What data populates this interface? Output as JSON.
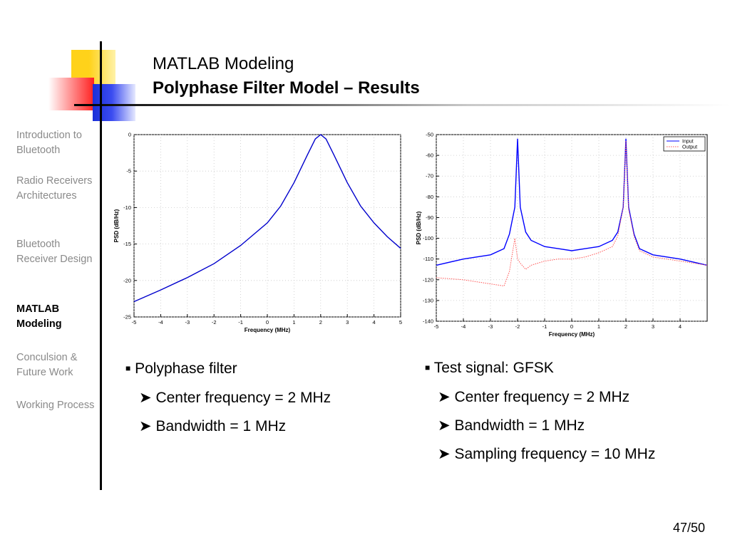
{
  "header": {
    "title": "MATLAB Modeling",
    "subtitle": "Polyphase Filter Model – Results"
  },
  "sidebar": {
    "items": [
      {
        "label": "Introduction to Bluetooth",
        "active": false
      },
      {
        "label": "Radio Receivers Architectures",
        "active": false
      },
      {
        "label": "Bluetooth Receiver Design",
        "active": false
      },
      {
        "label": "MATLAB Modeling",
        "active": true
      },
      {
        "label": "Conculsion & Future Work",
        "active": false
      },
      {
        "label": "Working Process",
        "active": false
      }
    ]
  },
  "chart_data": [
    {
      "type": "line",
      "xlabel": "Frequency (MHz)",
      "ylabel": "PSD (dB/Hz)",
      "xlim": [
        -5,
        5
      ],
      "ylim": [
        -25,
        0
      ],
      "xticks": [
        -5,
        -4,
        -3,
        -2,
        -1,
        0,
        1,
        2,
        3,
        4,
        5
      ],
      "yticks": [
        0,
        -5,
        -10,
        -15,
        -20,
        -25
      ],
      "grid": true,
      "series": [
        {
          "color": "#0000cc",
          "x": [
            -5,
            -4,
            -3,
            -2,
            -1,
            0,
            0.5,
            1,
            1.5,
            1.8,
            2,
            2.2,
            2.5,
            3,
            3.5,
            4,
            4.5,
            5
          ],
          "y": [
            -22.9,
            -21.3,
            -19.6,
            -17.7,
            -15.2,
            -12.1,
            -9.8,
            -6.6,
            -2.8,
            -0.6,
            0,
            -0.6,
            -2.8,
            -6.6,
            -9.8,
            -12.1,
            -14,
            -15.6
          ]
        }
      ]
    },
    {
      "type": "line",
      "xlabel": "Frequency (MHz)",
      "ylabel": "PSD (dB/Hz)",
      "xlim": [
        -5,
        5
      ],
      "ylim": [
        -140,
        -50
      ],
      "xticks": [
        -5,
        -4,
        -3,
        -2,
        -1,
        0,
        1,
        2,
        3,
        4
      ],
      "yticks": [
        -50,
        -60,
        -70,
        -80,
        -90,
        -100,
        -110,
        -120,
        -130,
        -140
      ],
      "grid": true,
      "legend": "top-right",
      "series": [
        {
          "name": "Input",
          "color": "#0000ff",
          "x": [
            -5,
            -4,
            -3,
            -2.5,
            -2.3,
            -2.1,
            -2.0,
            -1.9,
            -1.7,
            -1.5,
            -1,
            -0.5,
            0,
            0.5,
            1,
            1.5,
            1.7,
            1.9,
            2.0,
            2.1,
            2.3,
            2.5,
            3,
            4,
            5
          ],
          "y": [
            -113,
            -110,
            -108,
            -105,
            -98,
            -85,
            -52,
            -85,
            -97,
            -101,
            -104,
            -105,
            -106,
            -105,
            -104,
            -101,
            -97,
            -85,
            -52,
            -85,
            -98,
            -105,
            -108,
            -110,
            -113
          ]
        },
        {
          "name": "Output",
          "color": "#ff5555",
          "x": [
            -5,
            -4,
            -3,
            -2.5,
            -2.3,
            -2.1,
            -2.0,
            -1.9,
            -1.7,
            -1.5,
            -1,
            -0.5,
            0,
            0.5,
            1,
            1.5,
            1.7,
            1.9,
            2.0,
            2.1,
            2.3,
            2.5,
            3,
            4,
            5
          ],
          "y": [
            -119,
            -120,
            -122,
            -123,
            -116,
            -100,
            -110,
            -112,
            -115,
            -113,
            -111,
            -110,
            -110,
            -109,
            -107,
            -104,
            -99,
            -85,
            -53,
            -86,
            -99,
            -106,
            -109,
            -111,
            -113
          ]
        }
      ]
    }
  ],
  "bullets_left": {
    "main": "Polyphase filter",
    "subs": [
      "Center frequency = 2 MHz",
      "Bandwidth = 1 MHz"
    ]
  },
  "bullets_right": {
    "main": "Test signal: GFSK",
    "subs": [
      "Center frequency = 2 MHz",
      "Bandwidth = 1 MHz",
      "Sampling frequency = 10 MHz"
    ]
  },
  "footer": {
    "page": "47/50"
  }
}
